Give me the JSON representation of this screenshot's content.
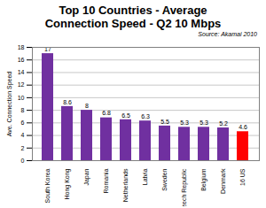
{
  "chart_data": {
    "type": "bar",
    "title": "Top 10 Countries - Average Connection Speed - Q2 10 Mbps",
    "annotation": "Source: Akamai 2010",
    "ylabel": "Ave. Connection Speed",
    "categories": [
      "South Korea",
      "Hong Kong",
      "Japan",
      "Romania",
      "Netherlands",
      "Latvia",
      "Sweden",
      "Czech Republic",
      "Belgium",
      "Denmark",
      "16 US"
    ],
    "values": [
      17,
      8.6,
      8,
      6.8,
      6.5,
      6.3,
      5.5,
      5.3,
      5.3,
      5.2,
      4.6
    ],
    "colors": [
      "#7030a0",
      "#7030a0",
      "#7030a0",
      "#7030a0",
      "#7030a0",
      "#7030a0",
      "#7030a0",
      "#7030a0",
      "#7030a0",
      "#7030a0",
      "#ff0000"
    ],
    "ylim": [
      0,
      18
    ],
    "yticks": [
      0,
      2,
      4,
      6,
      8,
      10,
      12,
      14,
      16,
      18
    ],
    "grid": true,
    "data_labels": true
  }
}
